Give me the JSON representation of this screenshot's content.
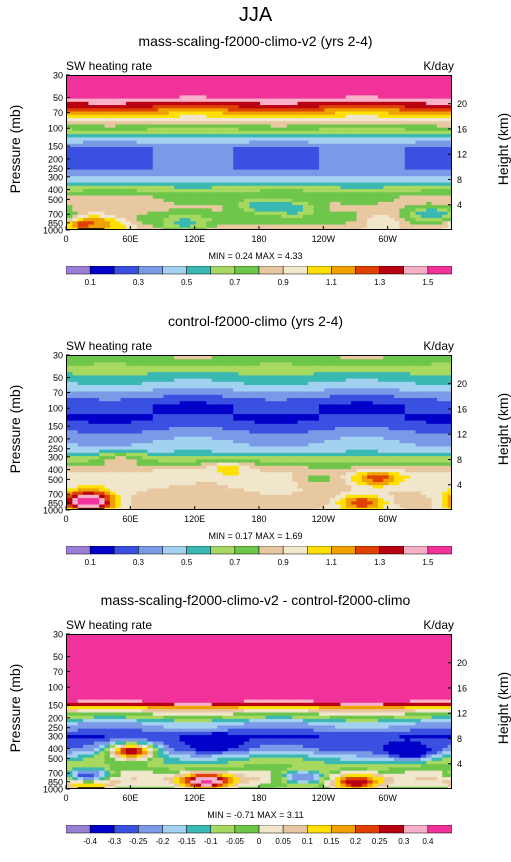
{
  "title": "JJA",
  "colors": {
    "abs": [
      "#9a7fd6",
      "#0000c8",
      "#3a50e0",
      "#7a9ae8",
      "#a3d1f0",
      "#3ab8b2",
      "#a7d860",
      "#6ec64a",
      "#e8c8a0",
      "#f0e6cc",
      "#ffe000",
      "#f0a000",
      "#e04000",
      "#b80010",
      "#f8b0c8",
      "#f0329a"
    ],
    "diff": [
      "#9a7fd6",
      "#0000c8",
      "#3a50e0",
      "#7a9ae8",
      "#a3d1f0",
      "#3ab8b2",
      "#a7d860",
      "#6ec64a",
      "#f0e6cc",
      "#e8c8a0",
      "#ffe000",
      "#f0a000",
      "#e04000",
      "#b80010",
      "#f8b0c8",
      "#f0329a"
    ]
  },
  "chart_data": [
    {
      "type": "heatmap",
      "title": "mass-scaling-f2000-climo-v2 (yrs 2-4)",
      "variable": "SW heating rate",
      "units": "K/day",
      "ylabel": "Pressure (mb)",
      "ylabel_right": "Height (km)",
      "xticks": [
        "0",
        "60E",
        "120E",
        "180",
        "120W",
        "60W"
      ],
      "xtick_lon": [
        0,
        60,
        120,
        180,
        240,
        300
      ],
      "xlim": [
        0,
        360
      ],
      "yticks_pressure": [
        1000,
        850,
        700,
        500,
        400,
        300,
        250,
        200,
        150,
        100,
        70,
        50,
        30
      ],
      "yticks_height_km": [
        4,
        8,
        12,
        16,
        20
      ],
      "min": 0.24,
      "max": 4.33,
      "minmax_text": "MIN =  0.24  MAX =  4.33",
      "colorbar_ticks": [
        "0.1",
        "0.3",
        "0.5",
        "0.7",
        "0.9",
        "1.1",
        "1.3",
        "1.5"
      ],
      "colorbar_levels": [
        0.1,
        0.2,
        0.3,
        0.4,
        0.5,
        0.6,
        0.7,
        0.8,
        0.9,
        1.0,
        1.1,
        1.2,
        1.3,
        1.4,
        1.5
      ],
      "palette": "abs",
      "layers": [
        {
          "p": 30,
          "v": 2.0
        },
        {
          "p": 60,
          "v": 1.3
        },
        {
          "p": 80,
          "v": 0.95
        },
        {
          "p": 100,
          "v": 0.7
        },
        {
          "p": 150,
          "v": 0.3
        },
        {
          "p": 250,
          "v": 0.3
        },
        {
          "p": 350,
          "v": 0.55
        },
        {
          "p": 450,
          "v": 0.8
        },
        {
          "p": 600,
          "v": 0.85
        },
        {
          "p": 750,
          "v": 0.75
        },
        {
          "p": 850,
          "v": 0.8
        },
        {
          "p": 1000,
          "v": 0.9
        }
      ],
      "features": [
        {
          "lon": 22,
          "p": 860,
          "v": 1.4
        },
        {
          "lon": 35,
          "p": 900,
          "v": 1.1
        },
        {
          "lon": 180,
          "p": 560,
          "v": 0.5
        },
        {
          "lon": 210,
          "p": 600,
          "v": 0.5
        },
        {
          "lon": 110,
          "p": 850,
          "v": 0.55
        },
        {
          "lon": 295,
          "p": 800,
          "v": 1.0
        },
        {
          "lon": 340,
          "p": 680,
          "v": 0.5
        }
      ]
    },
    {
      "type": "heatmap",
      "title": "control-f2000-climo (yrs 2-4)",
      "variable": "SW heating rate",
      "units": "K/day",
      "ylabel": "Pressure (mb)",
      "ylabel_right": "Height (km)",
      "xticks": [
        "0",
        "60E",
        "120E",
        "180",
        "120W",
        "60W"
      ],
      "xtick_lon": [
        0,
        60,
        120,
        180,
        240,
        300
      ],
      "xlim": [
        0,
        360
      ],
      "yticks_pressure": [
        1000,
        850,
        700,
        500,
        400,
        300,
        250,
        200,
        150,
        100,
        70,
        50,
        30
      ],
      "yticks_height_km": [
        4,
        8,
        12,
        16,
        20
      ],
      "min": 0.17,
      "max": 1.69,
      "minmax_text": "MIN =  0.17  MAX =  1.69",
      "colorbar_ticks": [
        "0.1",
        "0.3",
        "0.5",
        "0.7",
        "0.9",
        "1.1",
        "1.3",
        "1.5"
      ],
      "colorbar_levels": [
        0.1,
        0.2,
        0.3,
        0.4,
        0.5,
        0.6,
        0.7,
        0.8,
        0.9,
        1.0,
        1.1,
        1.2,
        1.3,
        1.4,
        1.5
      ],
      "palette": "abs",
      "layers": [
        {
          "p": 30,
          "v": 0.8
        },
        {
          "p": 60,
          "v": 0.45
        },
        {
          "p": 90,
          "v": 0.2
        },
        {
          "p": 130,
          "v": 0.2
        },
        {
          "p": 180,
          "v": 0.35
        },
        {
          "p": 250,
          "v": 0.45
        },
        {
          "p": 350,
          "v": 0.75
        },
        {
          "p": 450,
          "v": 0.95
        },
        {
          "p": 600,
          "v": 0.9
        },
        {
          "p": 750,
          "v": 0.85
        },
        {
          "p": 850,
          "v": 0.85
        },
        {
          "p": 1000,
          "v": 0.9
        }
      ],
      "features": [
        {
          "lon": 18,
          "p": 720,
          "v": 1.3
        },
        {
          "lon": 20,
          "p": 830,
          "v": 1.6
        },
        {
          "lon": 150,
          "p": 390,
          "v": 1.05
        },
        {
          "lon": 100,
          "p": 450,
          "v": 1.0
        },
        {
          "lon": 235,
          "p": 480,
          "v": 0.75
        },
        {
          "lon": 290,
          "p": 480,
          "v": 1.25
        },
        {
          "lon": 275,
          "p": 830,
          "v": 1.3
        },
        {
          "lon": 50,
          "p": 320,
          "v": 0.85
        }
      ]
    },
    {
      "type": "heatmap",
      "title": "mass-scaling-f2000-climo-v2 - control-f2000-climo",
      "variable": "SW heating rate",
      "units": "K/day",
      "ylabel": "Pressure (mb)",
      "ylabel_right": "Height (km)",
      "xticks": [
        "0",
        "60E",
        "120E",
        "180",
        "120W",
        "60W"
      ],
      "xtick_lon": [
        0,
        60,
        120,
        180,
        240,
        300
      ],
      "xlim": [
        0,
        360
      ],
      "yticks_pressure": [
        1000,
        850,
        700,
        500,
        400,
        300,
        250,
        200,
        150,
        100,
        70,
        50,
        30
      ],
      "yticks_height_km": [
        4,
        8,
        12,
        16,
        20
      ],
      "min": -0.71,
      "max": 3.11,
      "minmax_text": "MIN = -0.71  MAX =  3.11",
      "colorbar_ticks": [
        "-0.4",
        "-0.3",
        "-0.25",
        "-0.2",
        "-0.15",
        "-0.1",
        "-0.05",
        "0",
        "0.05",
        "0.1",
        "0.15",
        "0.2",
        "0.25",
        "0.3",
        "0.4"
      ],
      "colorbar_levels": [
        -0.4,
        -0.3,
        -0.25,
        -0.2,
        -0.15,
        -0.1,
        -0.05,
        0,
        0.05,
        0.1,
        0.15,
        0.2,
        0.25,
        0.3,
        0.4
      ],
      "palette": "diff",
      "layers": [
        {
          "p": 30,
          "v": 1.0
        },
        {
          "p": 120,
          "v": 0.6
        },
        {
          "p": 160,
          "v": 0.1
        },
        {
          "p": 220,
          "v": -0.18
        },
        {
          "p": 300,
          "v": -0.3
        },
        {
          "p": 400,
          "v": -0.25
        },
        {
          "p": 500,
          "v": -0.12
        },
        {
          "p": 600,
          "v": -0.05
        },
        {
          "p": 700,
          "v": 0.02
        },
        {
          "p": 800,
          "v": 0.05
        },
        {
          "p": 900,
          "v": 0.0
        },
        {
          "p": 1000,
          "v": -0.05
        }
      ],
      "features": [
        {
          "lon": 130,
          "p": 820,
          "v": 0.42
        },
        {
          "lon": 60,
          "p": 420,
          "v": 0.3
        },
        {
          "lon": 270,
          "p": 840,
          "v": 0.3
        },
        {
          "lon": 20,
          "p": 840,
          "v": 0.3
        },
        {
          "lon": 20,
          "p": 720,
          "v": -0.3
        },
        {
          "lon": 220,
          "p": 750,
          "v": -0.25
        },
        {
          "lon": 320,
          "p": 420,
          "v": -0.4
        },
        {
          "lon": 140,
          "p": 340,
          "v": -0.4
        }
      ]
    }
  ]
}
